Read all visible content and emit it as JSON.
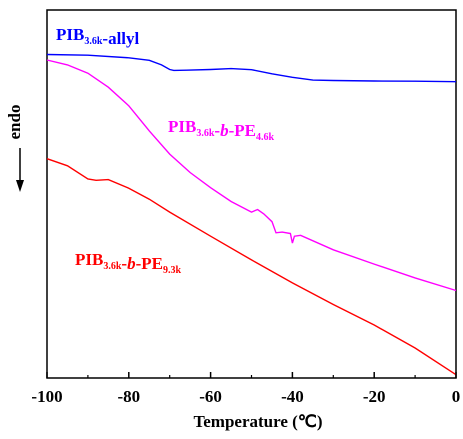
{
  "chart_data": {
    "type": "line",
    "xlabel": "Temperature (℃)",
    "ylabel": "endo",
    "xlim": [
      -100,
      0
    ],
    "x_ticks": [
      "-100",
      "-80",
      "-60",
      "-40",
      "-20",
      "0"
    ],
    "y_ticks": [],
    "grid": false,
    "series": [
      {
        "name": "PIB3.6k-allyl",
        "label_parts": [
          {
            "text": "PIB",
            "sub": false
          },
          {
            "text": "3.6k",
            "sub": true
          },
          {
            "text": "-allyl",
            "sub": false
          }
        ],
        "color": "#0000ff",
        "points": [
          [
            -100,
            1.1
          ],
          [
            -90,
            1.4
          ],
          [
            -80,
            2.5
          ],
          [
            -75,
            3.6
          ],
          [
            -72,
            5.6
          ],
          [
            -70,
            7.6
          ],
          [
            -69,
            8.0
          ],
          [
            -66,
            7.9
          ],
          [
            -60,
            7.6
          ],
          [
            -55,
            7.2
          ],
          [
            -50,
            7.7
          ],
          [
            -45,
            9.5
          ],
          [
            -40,
            11.0
          ],
          [
            -35,
            12.2
          ],
          [
            -30,
            12.4
          ],
          [
            -20,
            12.6
          ],
          [
            -10,
            12.7
          ],
          [
            0,
            12.9
          ]
        ]
      },
      {
        "name": "PIB3.6k-b-PE4.6k",
        "label_parts": [
          {
            "text": "PIB",
            "sub": false
          },
          {
            "text": "3.6k",
            "sub": true
          },
          {
            "text": "-",
            "sub": false
          },
          {
            "text": "b",
            "sub": false,
            "italic": true
          },
          {
            "text": "-PE",
            "sub": false
          },
          {
            "text": "4.6k",
            "sub": true
          }
        ],
        "color": "#ff00ff",
        "points": [
          [
            -100,
            3.5
          ],
          [
            -95,
            5.6
          ],
          [
            -90,
            9.2
          ],
          [
            -85,
            15.3
          ],
          [
            -80,
            23.4
          ],
          [
            -75,
            34.3
          ],
          [
            -70,
            44.4
          ],
          [
            -65,
            52.4
          ],
          [
            -60,
            59.0
          ],
          [
            -55,
            65.0
          ],
          [
            -50,
            69.6
          ],
          [
            -48.5,
            68.5
          ],
          [
            -47,
            70.4
          ],
          [
            -45,
            73.8
          ],
          [
            -44,
            78.6
          ],
          [
            -42.5,
            78.3
          ],
          [
            -40.5,
            78.9
          ],
          [
            -40,
            83.1
          ],
          [
            -39.5,
            80.1
          ],
          [
            -38,
            79.7
          ],
          [
            -30,
            86.0
          ],
          [
            -20,
            92.2
          ],
          [
            -10,
            98.2
          ],
          [
            0,
            103.7
          ]
        ]
      },
      {
        "name": "PIB3.6k-b-PE9.3k",
        "label_parts": [
          {
            "text": "PIB",
            "sub": false
          },
          {
            "text": "3.6k",
            "sub": true
          },
          {
            "text": "-",
            "sub": false
          },
          {
            "text": "b",
            "sub": false,
            "italic": true
          },
          {
            "text": "-PE",
            "sub": false
          },
          {
            "text": "9.3k",
            "sub": true
          }
        ],
        "color": "#ff0000",
        "points": [
          [
            -100,
            46.4
          ],
          [
            -95,
            49.5
          ],
          [
            -90,
            55.2
          ],
          [
            -88,
            55.8
          ],
          [
            -85,
            55.5
          ],
          [
            -80,
            59.2
          ],
          [
            -75,
            64.0
          ],
          [
            -70,
            69.6
          ],
          [
            -60,
            80.1
          ],
          [
            -50,
            90.4
          ],
          [
            -40,
            100.4
          ],
          [
            -30,
            109.8
          ],
          [
            -20,
            118.7
          ],
          [
            -10,
            128.7
          ],
          [
            0,
            140.3
          ]
        ]
      }
    ]
  }
}
